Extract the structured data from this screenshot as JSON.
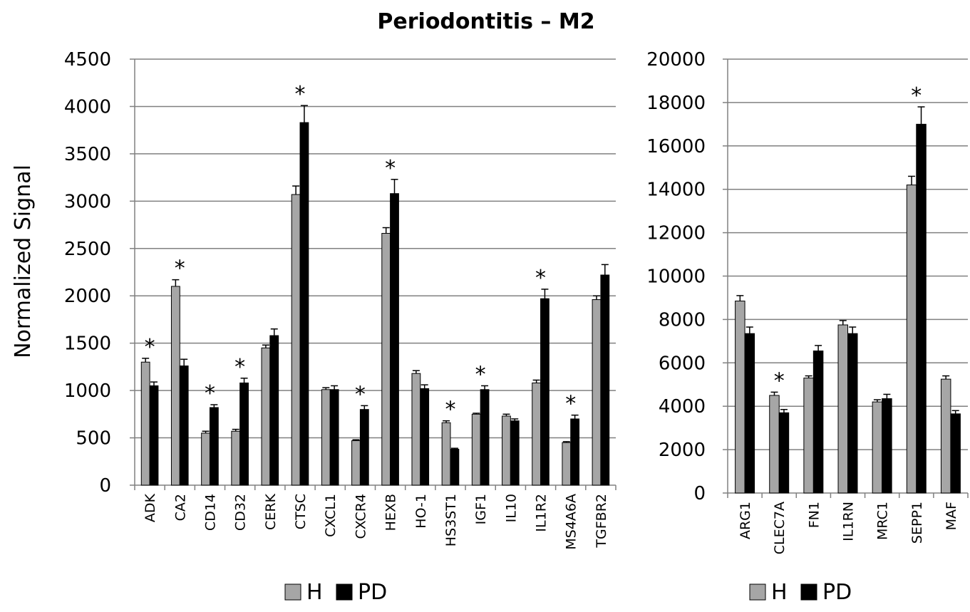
{
  "title": "Periodontitis – M2",
  "colors": {
    "H": "#a6a6a6",
    "PD": "#000000",
    "grid": "#808080",
    "axis": "#808080"
  },
  "chart_data": [
    {
      "type": "bar",
      "ylabel": "Normalized Signal",
      "ylim": [
        0,
        4500
      ],
      "yticks": [
        0,
        500,
        1000,
        1500,
        2000,
        2500,
        3000,
        3500,
        4000,
        4500
      ],
      "grid": true,
      "legend": "bottom-center",
      "categories": [
        "ADK",
        "CA2",
        "CD14",
        "CD32",
        "CERK",
        "CTSC",
        "CXCL1",
        "CXCR4",
        "HEXB",
        "HO-1",
        "HS3ST1",
        "IGF1",
        "IL10",
        "IL1R2",
        "MS4A6A",
        "TGFBR2"
      ],
      "series": [
        {
          "name": "H",
          "values": [
            1300,
            2100,
            550,
            570,
            1450,
            3070,
            1010,
            470,
            2660,
            1180,
            660,
            750,
            730,
            1080,
            450,
            1960
          ],
          "errors": [
            40,
            70,
            20,
            20,
            30,
            90,
            20,
            10,
            60,
            30,
            20,
            10,
            20,
            30,
            10,
            40
          ]
        },
        {
          "name": "PD",
          "values": [
            1050,
            1260,
            820,
            1080,
            1580,
            3830,
            1010,
            800,
            3080,
            1020,
            380,
            1010,
            680,
            1970,
            700,
            2220
          ],
          "errors": [
            40,
            70,
            30,
            50,
            70,
            180,
            40,
            40,
            150,
            40,
            10,
            40,
            20,
            100,
            40,
            110
          ]
        }
      ],
      "significant": [
        "ADK",
        "CA2",
        "CD14",
        "CD32",
        "CTSC",
        "CXCR4",
        "HEXB",
        "HS3ST1",
        "IGF1",
        "IL1R2",
        "MS4A6A"
      ],
      "marker": "*"
    },
    {
      "type": "bar",
      "ylabel": "",
      "ylim": [
        0,
        20000
      ],
      "yticks": [
        0,
        2000,
        4000,
        6000,
        8000,
        10000,
        12000,
        14000,
        16000,
        18000,
        20000
      ],
      "grid": true,
      "legend": "bottom-center",
      "categories": [
        "ARG1",
        "CLEC7A",
        "FN1",
        "IL1RN",
        "MRC1",
        "SEPP1",
        "MAF"
      ],
      "series": [
        {
          "name": "H",
          "values": [
            8850,
            4500,
            5300,
            7750,
            4200,
            14200,
            5250
          ],
          "errors": [
            250,
            150,
            100,
            200,
            100,
            400,
            150
          ]
        },
        {
          "name": "PD",
          "values": [
            7350,
            3700,
            6550,
            7350,
            4350,
            17000,
            3650
          ],
          "errors": [
            300,
            150,
            250,
            300,
            200,
            800,
            150
          ]
        }
      ],
      "significant": [
        "CLEC7A",
        "SEPP1"
      ],
      "marker": "*"
    }
  ]
}
